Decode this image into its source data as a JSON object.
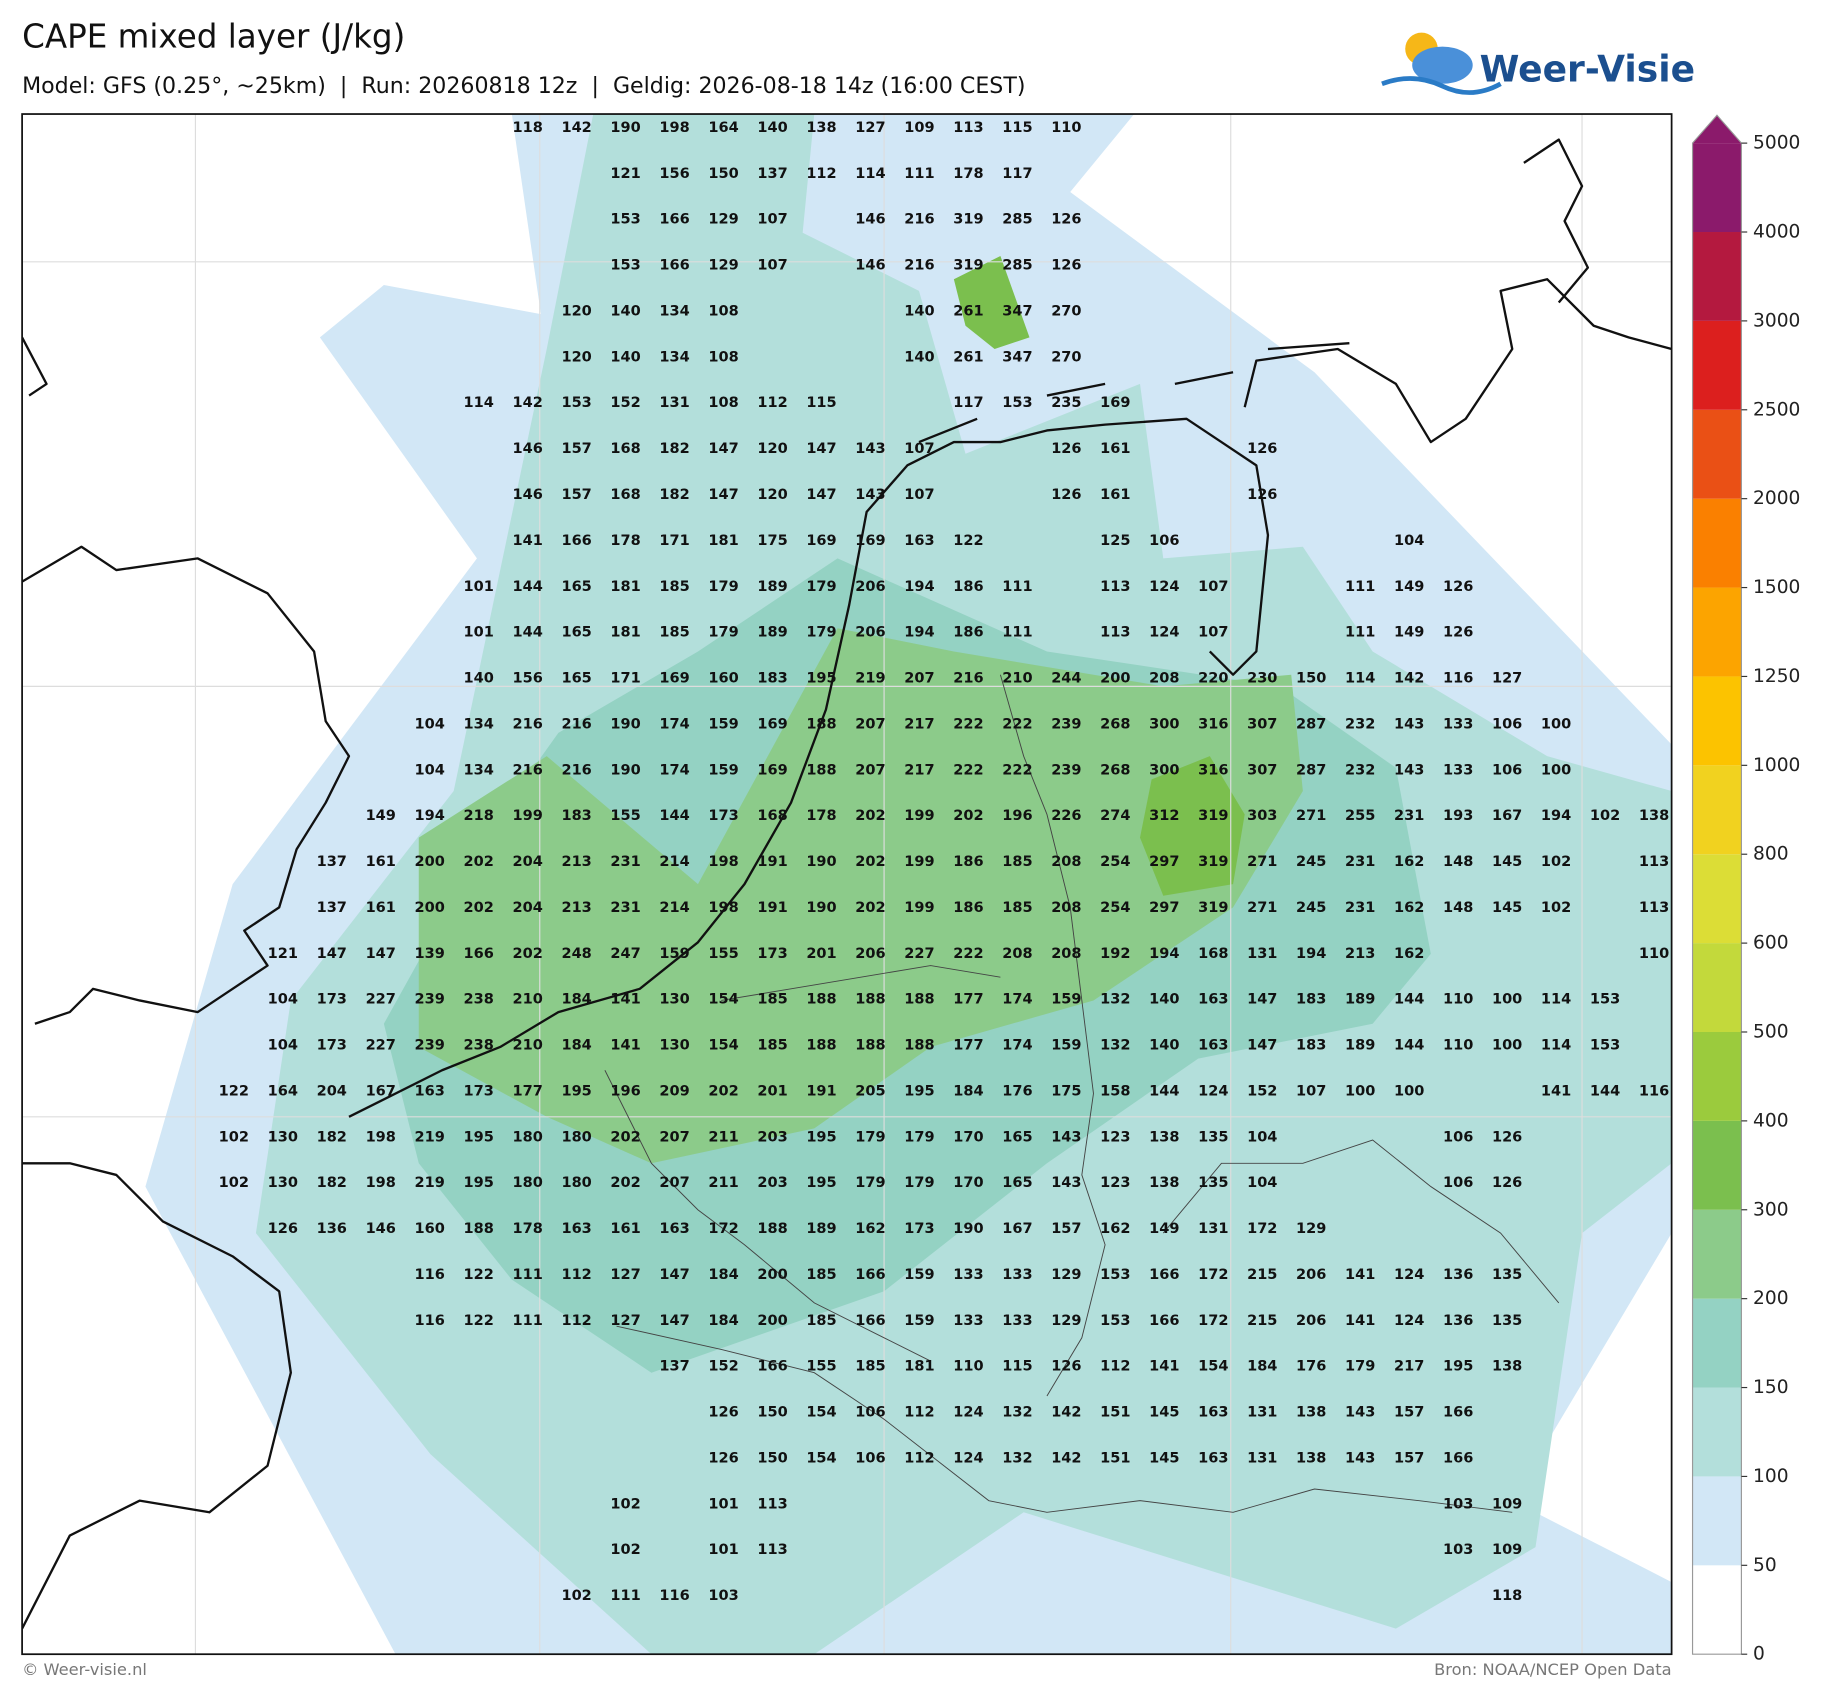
{
  "header": {
    "title": "CAPE mixed layer (J/kg)",
    "subtitle": "Model: GFS (0.25°, ~25km)  |  Run: 20260818 12z  |  Geldig: 2026-08-18 14z (16:00 CEST)",
    "logo": "Weer-Visie"
  },
  "map": {
    "values": [
      [
        null,
        null,
        null,
        null,
        null,
        null,
        118,
        142,
        190,
        198,
        164,
        140,
        138,
        127,
        109,
        113,
        115,
        110,
        null,
        null,
        null,
        null,
        null,
        null,
        null,
        null,
        null,
        null,
        null,
        null
      ],
      [
        null,
        null,
        null,
        null,
        null,
        null,
        null,
        null,
        121,
        156,
        150,
        137,
        112,
        114,
        111,
        178,
        117,
        null,
        null,
        null,
        null,
        null,
        null,
        null,
        null,
        null,
        null,
        null,
        null,
        null
      ],
      [
        null,
        null,
        null,
        null,
        null,
        null,
        null,
        null,
        153,
        166,
        129,
        107,
        null,
        146,
        216,
        319,
        285,
        126,
        null,
        null,
        null,
        null,
        null,
        null,
        null,
        null,
        null,
        null,
        null,
        null
      ],
      [
        null,
        null,
        null,
        null,
        null,
        null,
        null,
        null,
        153,
        166,
        129,
        107,
        null,
        146,
        216,
        319,
        285,
        126,
        null,
        null,
        null,
        null,
        null,
        null,
        null,
        null,
        null,
        null,
        null,
        null
      ],
      [
        null,
        null,
        null,
        null,
        null,
        null,
        null,
        120,
        140,
        134,
        108,
        null,
        null,
        null,
        140,
        261,
        347,
        270,
        null,
        null,
        null,
        null,
        null,
        null,
        null,
        null,
        null,
        null,
        null,
        null
      ],
      [
        null,
        null,
        null,
        null,
        null,
        null,
        null,
        120,
        140,
        134,
        108,
        null,
        null,
        null,
        140,
        261,
        347,
        270,
        null,
        null,
        null,
        null,
        null,
        null,
        null,
        null,
        null,
        null,
        null,
        null
      ],
      [
        null,
        null,
        null,
        null,
        null,
        114,
        142,
        153,
        152,
        131,
        108,
        112,
        115,
        null,
        null,
        117,
        153,
        235,
        169,
        null,
        null,
        null,
        null,
        null,
        null,
        null,
        null,
        null,
        null,
        null
      ],
      [
        null,
        null,
        null,
        null,
        null,
        null,
        146,
        157,
        168,
        182,
        147,
        120,
        147,
        143,
        107,
        null,
        null,
        126,
        161,
        null,
        null,
        126,
        null,
        null,
        null,
        null,
        null,
        null,
        null,
        null
      ],
      [
        null,
        null,
        null,
        null,
        null,
        null,
        146,
        157,
        168,
        182,
        147,
        120,
        147,
        143,
        107,
        null,
        null,
        126,
        161,
        null,
        null,
        126,
        null,
        null,
        null,
        null,
        null,
        null,
        null,
        null
      ],
      [
        null,
        null,
        null,
        null,
        null,
        null,
        141,
        166,
        178,
        171,
        181,
        175,
        169,
        169,
        163,
        122,
        null,
        null,
        125,
        106,
        null,
        null,
        null,
        null,
        104,
        null,
        null,
        null,
        null,
        null
      ],
      [
        null,
        null,
        null,
        null,
        null,
        101,
        144,
        165,
        181,
        185,
        179,
        189,
        179,
        206,
        194,
        186,
        111,
        null,
        113,
        124,
        107,
        null,
        null,
        111,
        149,
        126,
        null,
        null,
        null,
        null
      ],
      [
        null,
        null,
        null,
        null,
        null,
        101,
        144,
        165,
        181,
        185,
        179,
        189,
        179,
        206,
        194,
        186,
        111,
        null,
        113,
        124,
        107,
        null,
        null,
        111,
        149,
        126,
        null,
        null,
        null,
        null
      ],
      [
        null,
        null,
        null,
        null,
        null,
        140,
        156,
        165,
        171,
        169,
        160,
        183,
        195,
        219,
        207,
        216,
        210,
        244,
        200,
        208,
        220,
        230,
        150,
        114,
        142,
        116,
        127,
        null,
        null,
        null
      ],
      [
        null,
        null,
        null,
        null,
        104,
        134,
        216,
        216,
        190,
        174,
        159,
        169,
        188,
        207,
        217,
        222,
        222,
        239,
        268,
        300,
        316,
        307,
        287,
        232,
        143,
        133,
        106,
        100,
        null,
        null
      ],
      [
        null,
        null,
        null,
        null,
        104,
        134,
        216,
        216,
        190,
        174,
        159,
        169,
        188,
        207,
        217,
        222,
        222,
        239,
        268,
        300,
        316,
        307,
        287,
        232,
        143,
        133,
        106,
        100,
        null,
        null
      ],
      [
        null,
        null,
        null,
        149,
        194,
        218,
        199,
        183,
        155,
        144,
        173,
        168,
        178,
        202,
        199,
        202,
        196,
        226,
        274,
        312,
        319,
        303,
        271,
        255,
        231,
        193,
        167,
        194,
        102,
        138
      ],
      [
        null,
        null,
        137,
        161,
        200,
        202,
        204,
        213,
        231,
        214,
        198,
        191,
        190,
        202,
        199,
        186,
        185,
        208,
        254,
        297,
        319,
        271,
        245,
        231,
        162,
        148,
        145,
        102,
        null,
        113
      ],
      [
        null,
        null,
        137,
        161,
        200,
        202,
        204,
        213,
        231,
        214,
        198,
        191,
        190,
        202,
        199,
        186,
        185,
        208,
        254,
        297,
        319,
        271,
        245,
        231,
        162,
        148,
        145,
        102,
        null,
        113
      ],
      [
        null,
        121,
        147,
        147,
        139,
        166,
        202,
        248,
        247,
        159,
        155,
        173,
        201,
        206,
        227,
        222,
        208,
        208,
        192,
        194,
        168,
        131,
        194,
        213,
        162,
        null,
        null,
        null,
        null,
        110
      ],
      [
        null,
        104,
        173,
        227,
        239,
        238,
        210,
        184,
        141,
        130,
        154,
        185,
        188,
        188,
        188,
        177,
        174,
        159,
        132,
        140,
        163,
        147,
        183,
        189,
        144,
        110,
        100,
        114,
        153,
        null
      ],
      [
        null,
        104,
        173,
        227,
        239,
        238,
        210,
        184,
        141,
        130,
        154,
        185,
        188,
        188,
        188,
        177,
        174,
        159,
        132,
        140,
        163,
        147,
        183,
        189,
        144,
        110,
        100,
        114,
        153,
        null
      ],
      [
        122,
        164,
        204,
        167,
        163,
        173,
        177,
        195,
        196,
        209,
        202,
        201,
        191,
        205,
        195,
        184,
        176,
        175,
        158,
        144,
        124,
        152,
        107,
        100,
        100,
        null,
        null,
        141,
        144,
        116
      ],
      [
        102,
        130,
        182,
        198,
        219,
        195,
        180,
        180,
        202,
        207,
        211,
        203,
        195,
        179,
        179,
        170,
        165,
        143,
        123,
        138,
        135,
        104,
        null,
        null,
        null,
        106,
        126,
        null,
        null,
        null
      ],
      [
        102,
        130,
        182,
        198,
        219,
        195,
        180,
        180,
        202,
        207,
        211,
        203,
        195,
        179,
        179,
        170,
        165,
        143,
        123,
        138,
        135,
        104,
        null,
        null,
        null,
        106,
        126,
        null,
        null,
        null
      ],
      [
        null,
        126,
        136,
        146,
        160,
        188,
        178,
        163,
        161,
        163,
        172,
        188,
        189,
        162,
        173,
        190,
        167,
        157,
        162,
        149,
        131,
        172,
        129,
        null,
        null,
        null,
        null,
        null,
        null,
        null
      ],
      [
        null,
        null,
        null,
        null,
        116,
        122,
        111,
        112,
        127,
        147,
        184,
        200,
        185,
        166,
        159,
        133,
        133,
        129,
        153,
        166,
        172,
        215,
        206,
        141,
        124,
        136,
        135,
        null,
        null,
        null
      ],
      [
        null,
        null,
        null,
        null,
        116,
        122,
        111,
        112,
        127,
        147,
        184,
        200,
        185,
        166,
        159,
        133,
        133,
        129,
        153,
        166,
        172,
        215,
        206,
        141,
        124,
        136,
        135,
        null,
        null,
        null
      ],
      [
        null,
        null,
        null,
        null,
        null,
        null,
        null,
        null,
        null,
        137,
        152,
        166,
        155,
        185,
        181,
        110,
        115,
        126,
        112,
        141,
        154,
        184,
        176,
        179,
        217,
        195,
        138,
        null,
        null,
        null
      ],
      [
        null,
        null,
        null,
        null,
        null,
        null,
        null,
        null,
        null,
        null,
        126,
        150,
        154,
        106,
        112,
        124,
        132,
        142,
        151,
        145,
        163,
        131,
        138,
        143,
        157,
        166,
        null,
        null,
        null,
        null
      ],
      [
        null,
        null,
        null,
        null,
        null,
        null,
        null,
        null,
        null,
        null,
        126,
        150,
        154,
        106,
        112,
        124,
        132,
        142,
        151,
        145,
        163,
        131,
        138,
        143,
        157,
        166,
        null,
        null,
        null,
        null
      ],
      [
        null,
        null,
        null,
        null,
        null,
        null,
        null,
        null,
        102,
        null,
        101,
        113,
        null,
        null,
        null,
        null,
        null,
        null,
        null,
        null,
        null,
        null,
        null,
        null,
        null,
        103,
        109,
        null,
        null,
        null
      ],
      [
        null,
        null,
        null,
        null,
        null,
        null,
        null,
        null,
        102,
        null,
        101,
        113,
        null,
        null,
        null,
        null,
        null,
        null,
        null,
        null,
        null,
        null,
        null,
        null,
        null,
        103,
        109,
        null,
        null,
        null
      ],
      [
        null,
        null,
        null,
        null,
        null,
        null,
        null,
        102,
        111,
        116,
        103,
        null,
        null,
        null,
        null,
        null,
        null,
        null,
        null,
        null,
        null,
        null,
        null,
        null,
        null,
        null,
        118,
        null,
        null,
        null
      ]
    ]
  },
  "colorbar": {
    "levels": [
      0,
      50,
      100,
      150,
      200,
      300,
      400,
      500,
      600,
      800,
      1000,
      1250,
      1500,
      2000,
      2500,
      3000,
      4000,
      5000
    ],
    "colors": [
      "#ffffff",
      "#d2e7f6",
      "#b3dfdb",
      "#94d2c3",
      "#8ccb8a",
      "#7bbf4e",
      "#9bcb3d",
      "#c3d93b",
      "#dcdd36",
      "#f1d21f",
      "#fcc300",
      "#fca400",
      "#fa8000",
      "#ea5015",
      "#dc1f1e",
      "#b4193f",
      "#8b1a6b"
    ],
    "extend_color": "#8b1a6b"
  },
  "footer": {
    "copyright": "© Weer-visie.nl",
    "source": "Bron: NOAA/NCEP Open Data"
  }
}
